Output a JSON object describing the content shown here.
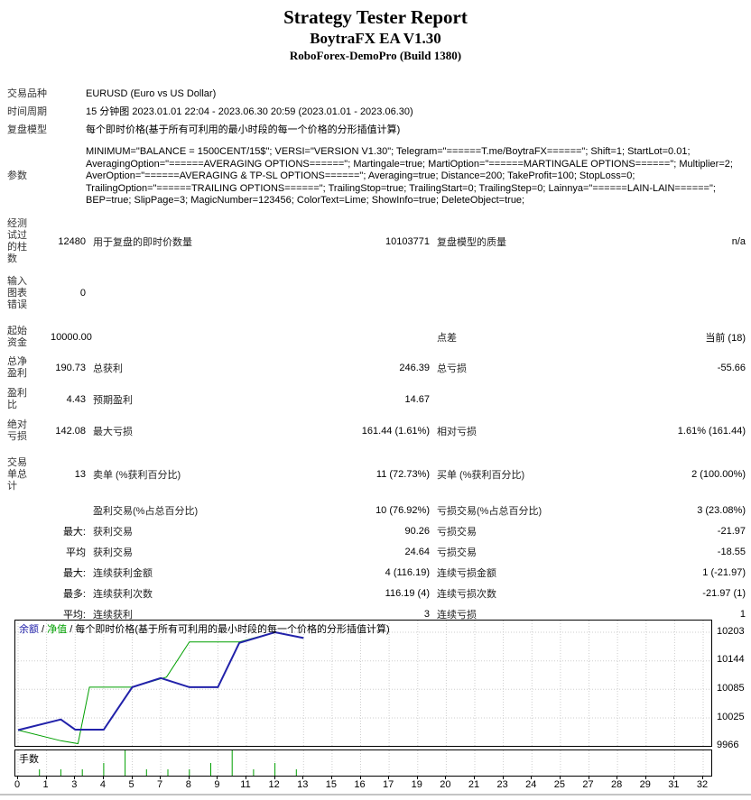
{
  "title": {
    "main": "Strategy Tester Report",
    "sub": "BoytraFX EA V1.30",
    "server": "RoboForex-DemoPro (Build 1380)"
  },
  "info": {
    "rows": [
      {
        "label": "交易品种",
        "value": "EURUSD (Euro vs US Dollar)"
      },
      {
        "label": "时间周期",
        "value": "15 分钟图 2023.01.01 22:04 - 2023.06.30 20:59 (2023.01.01 - 2023.06.30)"
      },
      {
        "label": "复盘模型",
        "value": "每个即时价格(基于所有可利用的最小时段的每一个价格的分形插值计算)"
      },
      {
        "label": "参数",
        "value": "MINIMUM=\"BALANCE = 1500CENT/15$\"; VERSI=\"VERSION V1.30\"; Telegram=\"======T.me/BoytraFX======\"; Shift=1; StartLot=0.01;\nAveragingOption=\"======AVERAGING OPTIONS======\"; Martingale=true; MartiOption=\"======MARTINGALE OPTIONS======\"; Multiplier=2;\nAverOption=\"======AVERAGING & TP-SL OPTIONS======\"; Averaging=true; Distance=200; TakeProfit=100; StopLoss=0;\nTrailingOption=\"======TRAILING OPTIONS======\"; TrailingStop=true; TrailingStart=0; TrailingStep=0; Lainnya=\"======LAIN-LAIN======\";\nBEP=true; SlipPage=3; MagicNumber=123456; ColorText=Lime; ShowInfo=true; DeleteObject=true;"
      }
    ]
  },
  "summary": {
    "rows": [
      {
        "c1": "经测\n试过\n的柱\n数",
        "c2": "12480",
        "c3": "用于复盘的即时价数量",
        "c4": "10103771",
        "c5": "复盘模型的质量",
        "c6": "n/a",
        "mt": 0
      },
      {
        "c1": "输入\n图表\n错误",
        "c2": "0",
        "c3": "",
        "c4": "",
        "c5": "",
        "c6": "",
        "mt": 12
      },
      {
        "c1": "起始\n资金",
        "c2": "10000.00",
        "c3": "",
        "c4": "",
        "c5": "点差",
        "c6": "当前 (18)",
        "mt": 16
      },
      {
        "c1": "总净\n盈利",
        "c2": "190.73",
        "c3": "总获利",
        "c4": "246.39",
        "c5": "总亏损",
        "c6": "-55.66",
        "mt": 8
      },
      {
        "c1": "盈利\n比",
        "c2": "4.43",
        "c3": "预期盈利",
        "c4": "14.67",
        "c5": "",
        "c6": "",
        "mt": 9
      },
      {
        "c1": "绝对\n亏损",
        "c2": "142.08",
        "c3": "最大亏损",
        "c4": "161.44 (1.61%)",
        "c5": "相对亏损",
        "c6": "1.61% (161.44)",
        "mt": 9
      },
      {
        "c1": "交易\n单总\n计",
        "c2": "13",
        "c3": "卖单 (%获利百分比)",
        "c4": "11 (72.73%)",
        "c5": "买单 (%获利百分比)",
        "c6": "2 (100.00%)",
        "mt": 16
      },
      {
        "c1": "",
        "c2": "",
        "c3": "盈利交易(%占总百分比)",
        "c4": "10 (76.92%)",
        "c5": "亏损交易(%占总百分比)",
        "c6": "3 (23.08%)",
        "mt": 12
      },
      {
        "c1": "",
        "c2": "最大:",
        "c3": "获利交易",
        "c4": "90.26",
        "c5": "亏损交易",
        "c6": "-21.97",
        "mt": 7
      },
      {
        "c1": "",
        "c2": "平均",
        "c3": "获利交易",
        "c4": "24.64",
        "c5": "亏损交易",
        "c6": "-18.55",
        "mt": 7
      },
      {
        "c1": "",
        "c2": "最大:",
        "c3": "连续获利金额",
        "c4": "4 (116.19)",
        "c5": "连续亏损金额",
        "c6": "1 (-21.97)",
        "mt": 7
      },
      {
        "c1": "",
        "c2": "最多:",
        "c3": "连续获利次数",
        "c4": "116.19 (4)",
        "c5": "连续亏损次数",
        "c6": "-21.97 (1)",
        "mt": 7
      },
      {
        "c1": "",
        "c2": "平均:",
        "c3": "连续获利",
        "c4": "3",
        "c5": "连续亏损",
        "c6": "1",
        "mt": 7
      }
    ]
  },
  "chart_data": {
    "type": "line",
    "legend": {
      "balance_label": "余额",
      "equity_label": "净值",
      "separator": " / ",
      "note": "每个即时价格(基于所有可利用的最小时段的每一个价格的分形插值计算)"
    },
    "y_ticks": [
      10203,
      10144,
      10085,
      10025,
      9966
    ],
    "y_range": [
      9966,
      10203
    ],
    "x_labels": [
      "0",
      "1",
      "3",
      "4",
      "5",
      "7",
      "8",
      "9",
      "11",
      "12",
      "13",
      "15",
      "16",
      "17",
      "19",
      "20",
      "21",
      "23",
      "24",
      "25",
      "27",
      "28",
      "29",
      "31",
      "32"
    ],
    "x_range": [
      0,
      32
    ],
    "grid": true,
    "series": [
      {
        "name": "balance",
        "label": "余额",
        "color": "#2222aa",
        "width": 2,
        "points": [
          [
            0,
            10000
          ],
          [
            2,
            10022
          ],
          [
            3,
            10001
          ],
          [
            4,
            10001
          ],
          [
            5,
            10089
          ],
          [
            7,
            10108
          ],
          [
            8,
            10089
          ],
          [
            9,
            10089
          ],
          [
            10.5,
            10181
          ],
          [
            12,
            10203
          ],
          [
            13,
            10191
          ]
        ]
      },
      {
        "name": "equity",
        "label": "净值",
        "color": "#00a000",
        "width": 1,
        "points": [
          [
            0,
            10000
          ],
          [
            2,
            9978
          ],
          [
            3.1,
            9972
          ],
          [
            3.5,
            10089
          ],
          [
            5,
            10089
          ],
          [
            7.2,
            10110
          ],
          [
            8,
            10183
          ],
          [
            10.5,
            10183
          ],
          [
            12,
            10203
          ],
          [
            13,
            10191
          ]
        ]
      }
    ],
    "volume": {
      "label": "手数",
      "trades": [
        1,
        2,
        3,
        4,
        5,
        6,
        7,
        8,
        9,
        10,
        11,
        12,
        13
      ],
      "lots": [
        0.01,
        0.01,
        0.01,
        0.02,
        0.04,
        0.01,
        0.01,
        0.01,
        0.02,
        0.04,
        0.01,
        0.02,
        0.01
      ],
      "color": "#00a000"
    },
    "grid_color": "#cdcdcd",
    "border_color": "#000000"
  }
}
